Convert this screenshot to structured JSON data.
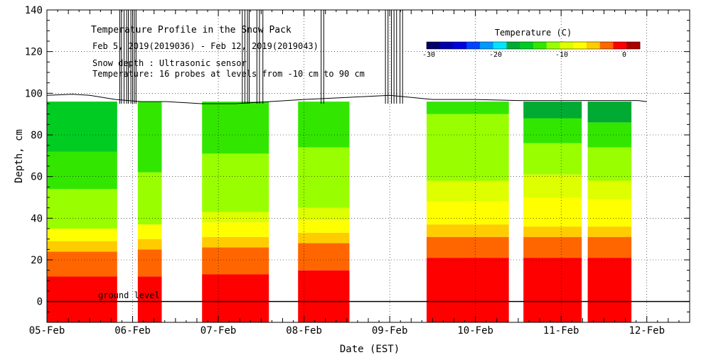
{
  "chart_data": {
    "type": "heatmap",
    "title": "Temperature Profile in the Snow Pack",
    "subtitle": "Feb  5, 2019(2019036) - Feb 12, 2019(2019043)",
    "notes": [
      "Snow depth : Ultrasonic sensor",
      "Temperature: 16 probes at levels from -10 cm to 90 cm"
    ],
    "xlabel": "Date (EST)",
    "ylabel": "Depth, cm",
    "x_ticks": [
      "05-Feb",
      "06-Feb",
      "07-Feb",
      "08-Feb",
      "09-Feb",
      "10-Feb",
      "11-Feb",
      "12-Feb"
    ],
    "ylim": [
      -10,
      140
    ],
    "y_ticks": [
      0,
      20,
      40,
      60,
      80,
      100,
      120,
      140
    ],
    "ground_level_label": "ground level",
    "colorbar": {
      "title": "Temperature (C)",
      "ticks": [
        "-30",
        "-20",
        "-10",
        "0"
      ],
      "colors": [
        "#000066",
        "#0000aa",
        "#0000dd",
        "#0044ff",
        "#0099ff",
        "#00e5ff",
        "#00aa33",
        "#00cc22",
        "#33e600",
        "#99ff00",
        "#ddff00",
        "#ffff00",
        "#ffcc00",
        "#ff6600",
        "#ff0000",
        "#aa0000"
      ]
    },
    "data_segments": [
      {
        "start_day": 0.0,
        "end_day": 0.82,
        "bands": [
          {
            "top": 12,
            "color": "#ff0000"
          },
          {
            "top": 24,
            "color": "#ff6600"
          },
          {
            "top": 29,
            "color": "#ffcc00"
          },
          {
            "top": 35,
            "color": "#ffff00"
          },
          {
            "top": 54,
            "color": "#99ff00"
          },
          {
            "top": 72,
            "color": "#33e600"
          },
          {
            "top": 96,
            "color": "#00cc22"
          }
        ]
      },
      {
        "start_day": 1.06,
        "end_day": 1.34,
        "bands": [
          {
            "top": 12,
            "color": "#ff0000"
          },
          {
            "top": 25,
            "color": "#ff6600"
          },
          {
            "top": 30,
            "color": "#ffcc00"
          },
          {
            "top": 37,
            "color": "#ffff00"
          },
          {
            "top": 62,
            "color": "#99ff00"
          },
          {
            "top": 96,
            "color": "#33e600"
          }
        ]
      },
      {
        "start_day": 1.81,
        "end_day": 2.59,
        "bands": [
          {
            "top": 13,
            "color": "#ff0000"
          },
          {
            "top": 26,
            "color": "#ff6600"
          },
          {
            "top": 31,
            "color": "#ffcc00"
          },
          {
            "top": 38,
            "color": "#ffff00"
          },
          {
            "top": 43,
            "color": "#ddff00"
          },
          {
            "top": 71,
            "color": "#99ff00"
          },
          {
            "top": 96,
            "color": "#33e600"
          }
        ]
      },
      {
        "start_day": 2.93,
        "end_day": 3.53,
        "bands": [
          {
            "top": 15,
            "color": "#ff0000"
          },
          {
            "top": 28,
            "color": "#ff6600"
          },
          {
            "top": 33,
            "color": "#ffcc00"
          },
          {
            "top": 39,
            "color": "#ffff00"
          },
          {
            "top": 45,
            "color": "#ddff00"
          },
          {
            "top": 74,
            "color": "#99ff00"
          },
          {
            "top": 96,
            "color": "#33e600"
          }
        ]
      },
      {
        "start_day": 4.43,
        "end_day": 5.39,
        "bands": [
          {
            "top": 21,
            "color": "#ff0000"
          },
          {
            "top": 31,
            "color": "#ff6600"
          },
          {
            "top": 37,
            "color": "#ffcc00"
          },
          {
            "top": 48,
            "color": "#ffff00"
          },
          {
            "top": 58,
            "color": "#ddff00"
          },
          {
            "top": 90,
            "color": "#99ff00"
          },
          {
            "top": 96,
            "color": "#33e600"
          }
        ]
      },
      {
        "start_day": 5.56,
        "end_day": 6.24,
        "bands": [
          {
            "top": 21,
            "color": "#ff0000"
          },
          {
            "top": 31,
            "color": "#ff6600"
          },
          {
            "top": 36,
            "color": "#ffcc00"
          },
          {
            "top": 50,
            "color": "#ffff00"
          },
          {
            "top": 61,
            "color": "#ddff00"
          },
          {
            "top": 76,
            "color": "#99ff00"
          },
          {
            "top": 88,
            "color": "#33e600"
          },
          {
            "top": 96,
            "color": "#00aa33"
          }
        ]
      },
      {
        "start_day": 6.31,
        "end_day": 6.82,
        "bands": [
          {
            "top": 21,
            "color": "#ff0000"
          },
          {
            "top": 31,
            "color": "#ff6600"
          },
          {
            "top": 36,
            "color": "#ffcc00"
          },
          {
            "top": 49,
            "color": "#ffff00"
          },
          {
            "top": 58,
            "color": "#ddff00"
          },
          {
            "top": 74,
            "color": "#99ff00"
          },
          {
            "top": 86,
            "color": "#33e600"
          },
          {
            "top": 96,
            "color": "#00aa33"
          }
        ]
      }
    ],
    "snow_depth": [
      [
        0.0,
        99
      ],
      [
        0.3,
        99.5
      ],
      [
        0.5,
        99
      ],
      [
        0.8,
        97
      ],
      [
        1.1,
        96
      ],
      [
        1.4,
        96
      ],
      [
        1.8,
        95
      ],
      [
        2.2,
        95
      ],
      [
        2.6,
        96
      ],
      [
        3.0,
        97
      ],
      [
        3.5,
        98
      ],
      [
        4.0,
        99
      ],
      [
        4.5,
        97
      ],
      [
        5.0,
        97
      ],
      [
        5.5,
        96.5
      ],
      [
        6.0,
        96.5
      ],
      [
        6.5,
        96.5
      ],
      [
        6.9,
        96.5
      ],
      [
        7.0,
        96
      ]
    ],
    "spikes": [
      0.85,
      0.87,
      0.9,
      0.93,
      0.95,
      0.98,
      1.0,
      1.02,
      1.04,
      2.28,
      2.31,
      2.34,
      2.36,
      2.45,
      2.48,
      2.52,
      3.2,
      3.23,
      3.95,
      3.98,
      4.02,
      4.05,
      4.08,
      4.12,
      4.15
    ]
  }
}
